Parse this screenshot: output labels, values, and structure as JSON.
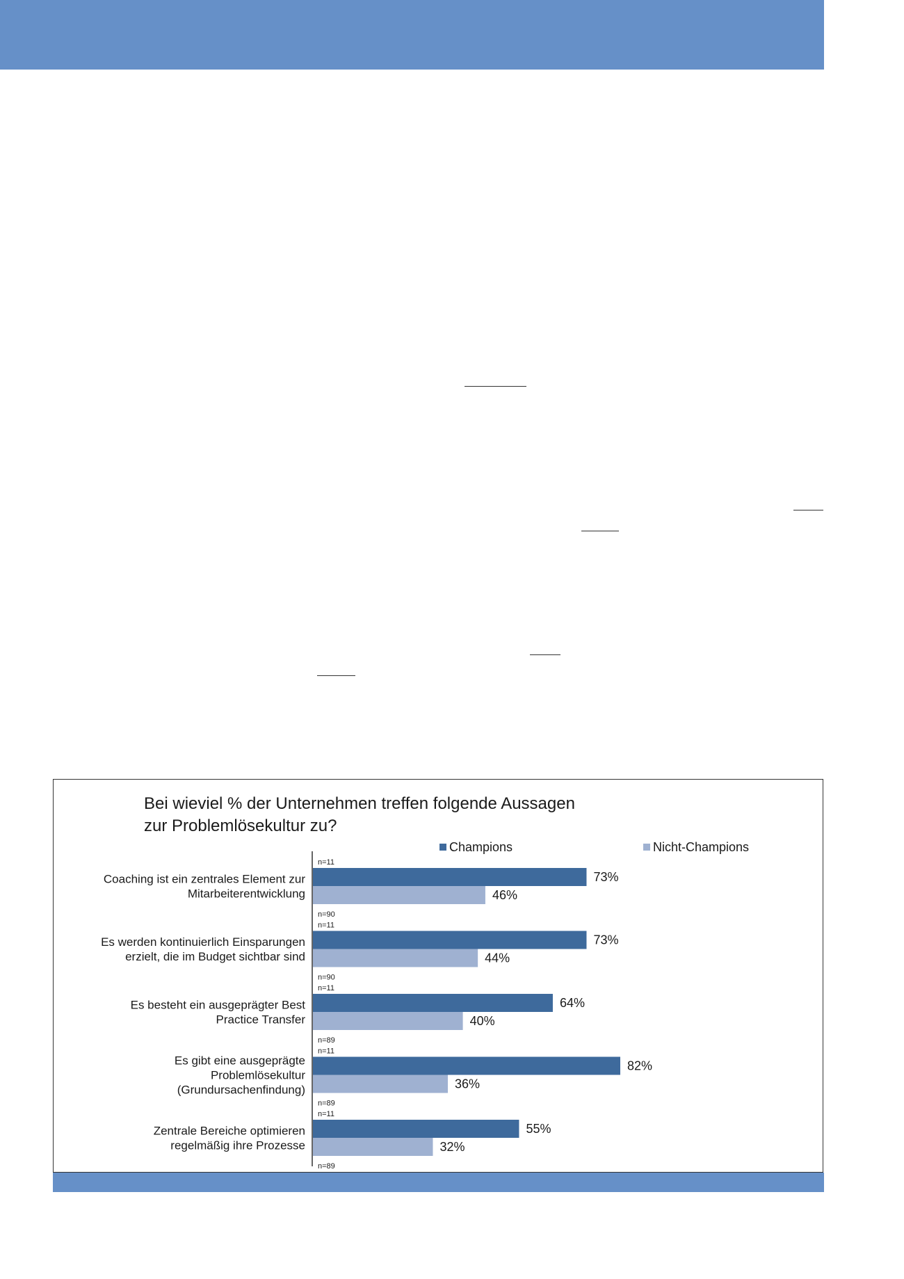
{
  "page": {
    "banner_color": "#6690c8",
    "footer_color": "#6690c8"
  },
  "chart_data": {
    "type": "bar",
    "orientation": "horizontal",
    "title_lines": [
      "Bei wieviel % der Unternehmen treffen folgende Aussagen",
      "zur Problemlösekultur zu?"
    ],
    "xlim": [
      0,
      100
    ],
    "grid": false,
    "legend_position": "top",
    "categories": [
      [
        "Coaching ist ein zentrales Element zur",
        "Mitarbeiterentwicklung"
      ],
      [
        "Es werden kontinuierlich Einsparungen",
        "erzielt, die im Budget sichtbar sind"
      ],
      [
        "Es besteht ein ausgeprägter Best",
        "Practice Transfer"
      ],
      [
        "Es gibt eine ausgeprägte",
        "Problemlösekultur",
        "(Grundursachenfindung)"
      ],
      [
        "Zentrale Bereiche optimieren",
        "regelmäßig ihre Prozesse"
      ]
    ],
    "series": [
      {
        "name": "Champions",
        "color": "#3e6a9c",
        "values": [
          73,
          73,
          64,
          82,
          55
        ],
        "labels": [
          "73%",
          "73%",
          "64%",
          "82%",
          "55%"
        ],
        "n_labels": [
          "n=11",
          "n=11",
          "n=11",
          "n=11",
          "n=11"
        ]
      },
      {
        "name": "Nicht-Champions",
        "color": "#9fb1d1",
        "values": [
          46,
          44,
          40,
          36,
          32
        ],
        "labels": [
          "46%",
          "44%",
          "40%",
          "36%",
          "32%"
        ],
        "n_labels": [
          "n=90",
          "n=90",
          "n=89",
          "n=89",
          "n=89"
        ]
      }
    ]
  }
}
